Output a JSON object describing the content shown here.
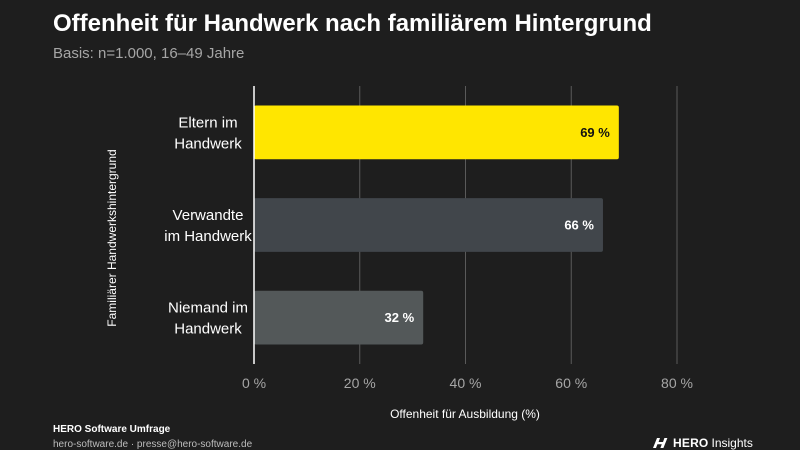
{
  "header": {
    "title": "Offenheit für Handwerk nach familiärem Hintergrund",
    "subtitle": "Basis: n=1.000, 16–49 Jahre"
  },
  "footer": {
    "source": "HERO Software Umfrage",
    "contact": "hero-software.de · presse@hero-software.de",
    "brand_name": "HERO",
    "brand_suffix": "Insights",
    "brand_icon": "hero-logo-icon"
  },
  "colors": {
    "background": "#1e1e1e",
    "highlight": "#ffe600",
    "bar_mid": "#41464b",
    "bar_low": "#535859",
    "grid": "#5a5a5a"
  },
  "chart_data": {
    "type": "bar",
    "orientation": "horizontal",
    "categories": [
      [
        "Eltern im",
        "Handwerk"
      ],
      [
        "Verwandte",
        "im Handwerk"
      ],
      [
        "Niemand im",
        "Handwerk"
      ]
    ],
    "values": [
      69,
      66,
      32
    ],
    "value_labels": [
      "69 %",
      "66 %",
      "32 %"
    ],
    "xlabel": "Offenheit für Ausbildung (%)",
    "ylabel": "Familiärer Handwerkshintergrund",
    "xlim": [
      0,
      80
    ],
    "xticks": [
      0,
      20,
      40,
      60,
      80
    ],
    "xtick_labels": [
      "0 %",
      "20 %",
      "40 %",
      "60 %",
      "80 %"
    ],
    "grid": true
  }
}
